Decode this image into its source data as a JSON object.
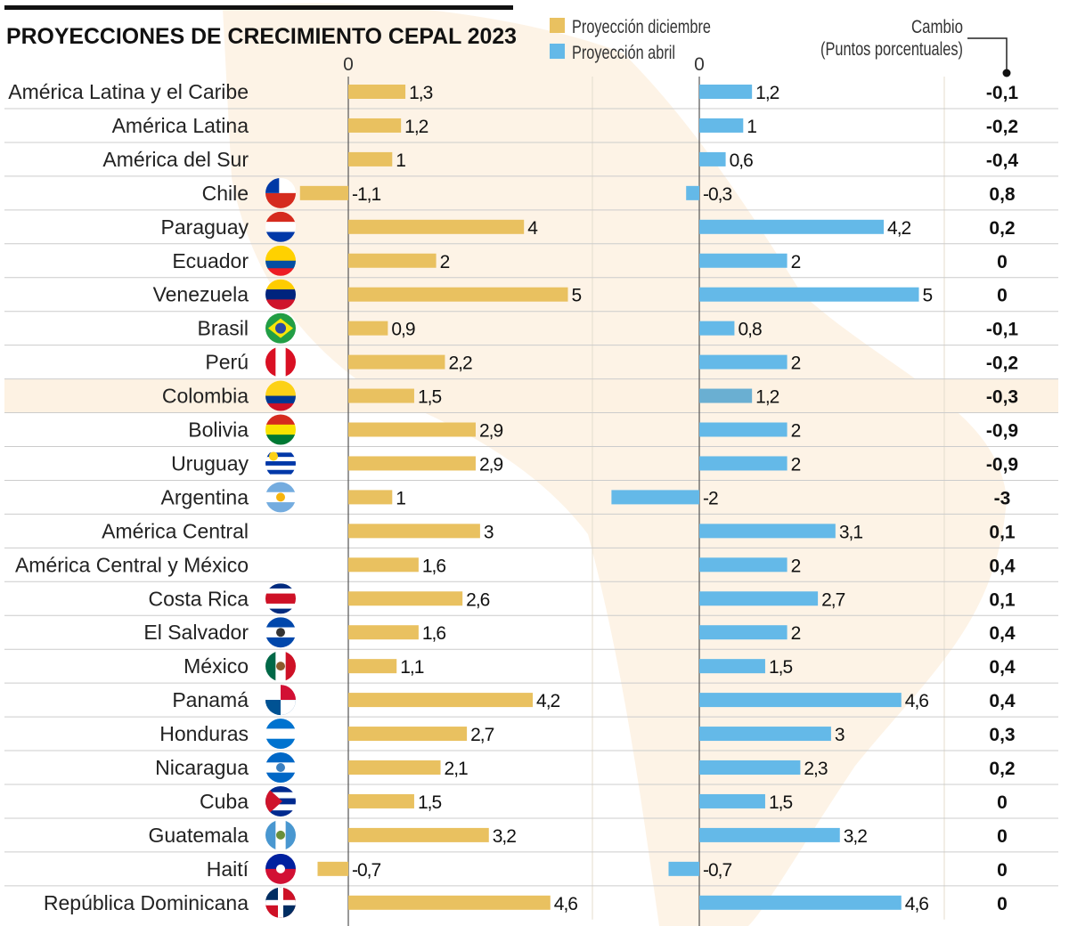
{
  "chart_data": {
    "type": "bar",
    "orientation": "horizontal",
    "title": "PROYECCIONES DE CRECIMIENTO CEPAL 2023",
    "legend": {
      "placement": "top-center",
      "entries": [
        "Proyección diciembre",
        "Proyección abril"
      ]
    },
    "axis_zero_label": "0",
    "change_header": [
      "Cambio",
      "(Puntos porcentuales)"
    ],
    "highlight_category": "Colombia",
    "colors": {
      "diciembre": "#e9c160",
      "abril": "#64b9e8",
      "abril_highlight": "#6aafd2",
      "highlight_row": "#fdf2e3",
      "grid": "#cccccc"
    },
    "categories": [
      "América Latina y el Caribe",
      "América Latina",
      "América del Sur",
      "Chile",
      "Paraguay",
      "Ecuador",
      "Venezuela",
      "Brasil",
      "Perú",
      "Colombia",
      "Bolivia",
      "Uruguay",
      "Argentina",
      "América Central",
      "América Central y México",
      "Costa Rica",
      "El Salvador",
      "México",
      "Panamá",
      "Honduras",
      "Nicaragua",
      "Cuba",
      "Guatemala",
      "Haití",
      "República Dominicana"
    ],
    "series": [
      {
        "name": "Proyección diciembre",
        "values": [
          1.3,
          1.2,
          1,
          -1.1,
          4,
          2,
          5,
          0.9,
          2.2,
          1.5,
          2.9,
          2.9,
          1,
          3,
          1.6,
          2.6,
          1.6,
          1.1,
          4.2,
          2.7,
          2.1,
          1.5,
          3.2,
          -0.7,
          4.6
        ]
      },
      {
        "name": "Proyección abril",
        "values": [
          1.2,
          1,
          0.6,
          -0.3,
          4.2,
          2,
          5,
          0.8,
          2,
          1.2,
          2,
          2,
          -2,
          3.1,
          2,
          2.7,
          2,
          1.5,
          4.6,
          3,
          2.3,
          1.5,
          3.2,
          -0.7,
          4.6
        ]
      }
    ],
    "change": [
      -0.1,
      -0.2,
      -0.4,
      0.8,
      0.2,
      0,
      0,
      -0.1,
      -0.2,
      -0.3,
      -0.9,
      -0.9,
      -3,
      0.1,
      0.4,
      0.1,
      0.4,
      0.4,
      0.4,
      0.3,
      0.2,
      0,
      0,
      0,
      0
    ],
    "flags": {
      "Chile": {
        "dir": "h",
        "stripes": [
          "#ffffff",
          "#d52b1e"
        ],
        "canton": "#0039a6"
      },
      "Paraguay": {
        "dir": "h",
        "stripes": [
          "#d52b1e",
          "#ffffff",
          "#0038a8"
        ]
      },
      "Ecuador": {
        "dir": "h",
        "stripes": [
          "#ffd100",
          "#ffd100",
          "#034ea2",
          "#ed1c24"
        ]
      },
      "Venezuela": {
        "dir": "h",
        "stripes": [
          "#ffcc00",
          "#00247d",
          "#cf142b"
        ]
      },
      "Brasil": {
        "dir": "h",
        "stripes": [
          "#229e45"
        ],
        "center": "#f8e509",
        "inner": "#2b49a3"
      },
      "Perú": {
        "dir": "v",
        "stripes": [
          "#d91023",
          "#ffffff",
          "#d91023"
        ]
      },
      "Colombia": {
        "dir": "h",
        "stripes": [
          "#fcd116",
          "#fcd116",
          "#003893",
          "#ce1126"
        ]
      },
      "Bolivia": {
        "dir": "h",
        "stripes": [
          "#d52b1e",
          "#f9e300",
          "#007934"
        ]
      },
      "Uruguay": {
        "dir": "h",
        "stripes": [
          "#ffffff",
          "#0038a8",
          "#ffffff",
          "#0038a8",
          "#ffffff",
          "#0038a8",
          "#ffffff"
        ],
        "sun": "#fcd116"
      },
      "Argentina": {
        "dir": "h",
        "stripes": [
          "#74acdf",
          "#ffffff",
          "#74acdf"
        ],
        "center": "#f6b40e"
      },
      "Costa Rica": {
        "dir": "h",
        "stripes": [
          "#002b7f",
          "#ffffff",
          "#ce1126",
          "#ce1126",
          "#ffffff",
          "#002b7f"
        ]
      },
      "El Salvador": {
        "dir": "h",
        "stripes": [
          "#0047ab",
          "#ffffff",
          "#0047ab"
        ],
        "center": "#333333"
      },
      "México": {
        "dir": "v",
        "stripes": [
          "#006847",
          "#ffffff",
          "#ce1126"
        ],
        "center": "#8b5a2b"
      },
      "Panamá": {
        "dir": "h",
        "stripes": [
          "#ffffff",
          "#005293"
        ],
        "quad": "#d21034"
      },
      "Honduras": {
        "dir": "h",
        "stripes": [
          "#0073cf",
          "#ffffff",
          "#0073cf"
        ]
      },
      "Nicaragua": {
        "dir": "h",
        "stripes": [
          "#0067c6",
          "#ffffff",
          "#0067c6"
        ],
        "center": "#3a7fc0"
      },
      "Cuba": {
        "dir": "h",
        "stripes": [
          "#002a8f",
          "#ffffff",
          "#002a8f",
          "#ffffff",
          "#002a8f"
        ],
        "triangle": "#cf142b"
      },
      "Guatemala": {
        "dir": "v",
        "stripes": [
          "#4997d0",
          "#ffffff",
          "#4997d0"
        ],
        "center": "#6a8f3a"
      },
      "Haití": {
        "dir": "h",
        "stripes": [
          "#00209f",
          "#d21034"
        ],
        "center": "#ffffff"
      },
      "República Dominicana": {
        "dir": "h",
        "stripes": [
          "#002d62",
          "#ce1126"
        ],
        "cross": "#ffffff"
      }
    }
  }
}
